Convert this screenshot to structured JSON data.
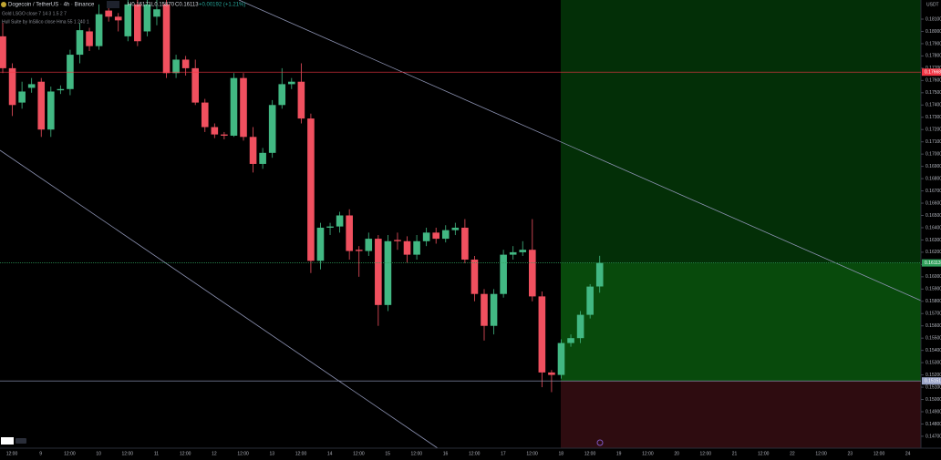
{
  "chart_data": {
    "type": "candlestick",
    "header": {
      "symbol": "Dogecoin / TetherUS · 4h · Binance",
      "high": "H0.16171",
      "low": "L0.15870",
      "close": "C0.16113",
      "change": "+0.00192 (+1.21%)",
      "indicator_1": "Gold LSGO close 7 14 3 1.5 2 7",
      "indicator_2": "Hull Suite by InSilico close Hma 55 1 240 1"
    },
    "currency": "USDT",
    "up_color": "#42b883",
    "down_color": "#f0505f",
    "open": [
      0.1796,
      0.177,
      0.1742,
      0.1754,
      0.1759,
      0.172,
      0.1752,
      0.1753,
      0.1781,
      0.18,
      0.1788,
      0.1817,
      0.1812,
      0.1796,
      0.1822,
      0.18,
      0.1812,
      0.1822,
      0.1766,
      0.1777,
      0.177,
      0.1742,
      0.1722,
      0.1716,
      0.1715,
      0.1762,
      0.1714,
      0.1692,
      0.1701,
      0.174,
      0.1757,
      0.1759,
      0.1729,
      0.1613,
      0.164,
      0.1641,
      0.165,
      0.1622,
      0.1621,
      0.1631,
      0.1577,
      0.163,
      0.1629,
      0.1618,
      0.1629,
      0.1636,
      0.1631,
      0.1638,
      0.164,
      0.1614,
      0.1586,
      0.156,
      0.1586,
      0.1618,
      0.162,
      0.1622,
      0.1584,
      0.1522,
      0.152,
      0.1546,
      0.155,
      0.1569,
      0.15921
    ],
    "high": [
      0.1807,
      0.1774,
      0.1759,
      0.1762,
      0.1762,
      0.1755,
      0.1756,
      0.1785,
      0.1807,
      0.1803,
      0.1822,
      0.182,
      0.1815,
      0.1826,
      0.1826,
      0.1826,
      0.1826,
      0.1826,
      0.1781,
      0.178,
      0.1777,
      0.1745,
      0.1725,
      0.1718,
      0.1766,
      0.1766,
      0.1722,
      0.1705,
      0.1744,
      0.177,
      0.1762,
      0.1774,
      0.1733,
      0.1644,
      0.1644,
      0.1653,
      0.1655,
      0.1625,
      0.1636,
      0.1634,
      0.1634,
      0.1636,
      0.1633,
      0.1634,
      0.164,
      0.164,
      0.1642,
      0.1644,
      0.1647,
      0.1617,
      0.159,
      0.159,
      0.1622,
      0.1625,
      0.1629,
      0.1647,
      0.1588,
      0.1524,
      0.1549,
      0.1553,
      0.1572,
      0.1594,
      0.16171
    ],
    "low": [
      0.1766,
      0.1731,
      0.1737,
      0.175,
      0.1714,
      0.1714,
      0.1749,
      0.1748,
      0.1774,
      0.1784,
      0.1785,
      0.1808,
      0.18,
      0.1792,
      0.1788,
      0.1796,
      0.1805,
      0.1762,
      0.1762,
      0.1764,
      0.174,
      0.1718,
      0.1713,
      0.1712,
      0.1714,
      0.1711,
      0.1685,
      0.1688,
      0.1697,
      0.1737,
      0.1753,
      0.1725,
      0.1603,
      0.1606,
      0.1634,
      0.1636,
      0.1614,
      0.16,
      0.1617,
      0.156,
      0.1572,
      0.1622,
      0.1611,
      0.1614,
      0.1625,
      0.1627,
      0.1628,
      0.1634,
      0.1611,
      0.158,
      0.1548,
      0.1553,
      0.1583,
      0.1614,
      0.1617,
      0.158,
      0.151,
      0.1506,
      0.1517,
      0.1543,
      0.1546,
      0.1566,
      0.1587
    ],
    "close": [
      0.177,
      0.174,
      0.1751,
      0.1757,
      0.172,
      0.1751,
      0.1753,
      0.1781,
      0.1801,
      0.1788,
      0.1814,
      0.1812,
      0.1809,
      0.1822,
      0.1792,
      0.1822,
      0.1818,
      0.1766,
      0.1777,
      0.177,
      0.1742,
      0.1722,
      0.1716,
      0.1715,
      0.1762,
      0.1714,
      0.1692,
      0.1701,
      0.174,
      0.1757,
      0.1759,
      0.1729,
      0.1613,
      0.164,
      0.1641,
      0.165,
      0.1621,
      0.1621,
      0.1631,
      0.1577,
      0.1629,
      0.1629,
      0.1618,
      0.1629,
      0.1636,
      0.1631,
      0.1638,
      0.164,
      0.1614,
      0.1586,
      0.156,
      0.1586,
      0.1618,
      0.162,
      0.1622,
      0.1584,
      0.1522,
      0.152,
      0.1546,
      0.155,
      0.1569,
      0.1592,
      0.16113
    ],
    "ylim": [
      0.14603,
      0.18256
    ],
    "yticks": [
      {
        "value": 0.147,
        "label": "0.14700"
      },
      {
        "value": 0.148,
        "label": "0.14800"
      },
      {
        "value": 0.149,
        "label": "0.14900"
      },
      {
        "value": 0.15,
        "label": "0.15000"
      },
      {
        "value": 0.151,
        "label": "0.15100"
      },
      {
        "value": 0.152,
        "label": "0.15200"
      },
      {
        "value": 0.153,
        "label": "0.15300"
      },
      {
        "value": 0.154,
        "label": "0.15400"
      },
      {
        "value": 0.155,
        "label": "0.15500"
      },
      {
        "value": 0.156,
        "label": "0.15600"
      },
      {
        "value": 0.157,
        "label": "0.15700"
      },
      {
        "value": 0.158,
        "label": "0.15800"
      },
      {
        "value": 0.159,
        "label": "0.15900"
      },
      {
        "value": 0.16,
        "label": "0.16000"
      },
      {
        "value": 0.161,
        "label": "0.16100"
      },
      {
        "value": 0.162,
        "label": "0.16200"
      },
      {
        "value": 0.163,
        "label": "0.16300"
      },
      {
        "value": 0.164,
        "label": "0.16400"
      },
      {
        "value": 0.165,
        "label": "0.16500"
      },
      {
        "value": 0.166,
        "label": "0.16600"
      },
      {
        "value": 0.167,
        "label": "0.16700"
      },
      {
        "value": 0.168,
        "label": "0.16800"
      },
      {
        "value": 0.169,
        "label": "0.16900"
      },
      {
        "value": 0.17,
        "label": "0.17000"
      },
      {
        "value": 0.171,
        "label": "0.17100"
      },
      {
        "value": 0.172,
        "label": "0.17200"
      },
      {
        "value": 0.173,
        "label": "0.17300"
      },
      {
        "value": 0.174,
        "label": "0.17400"
      },
      {
        "value": 0.175,
        "label": "0.17500"
      },
      {
        "value": 0.176,
        "label": "0.17600"
      },
      {
        "value": 0.177,
        "label": "0.17700"
      },
      {
        "value": 0.178,
        "label": "0.17800"
      },
      {
        "value": 0.179,
        "label": "0.17900"
      },
      {
        "value": 0.18,
        "label": "0.18000"
      },
      {
        "value": 0.181,
        "label": "0.18100"
      }
    ],
    "price_lines": [
      {
        "value": 0.17668,
        "color": "#f23645"
      },
      {
        "value": 0.16113,
        "color": "#2e9e5a"
      },
      {
        "value": 0.15151,
        "color": "#9aa3c7"
      }
    ],
    "x_labels": [
      "12:00",
      "9",
      "12:00",
      "10",
      "12:00",
      "11",
      "12:00",
      "12",
      "12:00",
      "13",
      "12:00",
      "14",
      "12:00",
      "15",
      "12:00",
      "16",
      "12:00",
      "17",
      "12:00",
      "18",
      "12:00",
      "19",
      "12:00",
      "20",
      "12:00",
      "21",
      "12:00",
      "22",
      "12:00",
      "23",
      "12:00",
      "24"
    ]
  }
}
